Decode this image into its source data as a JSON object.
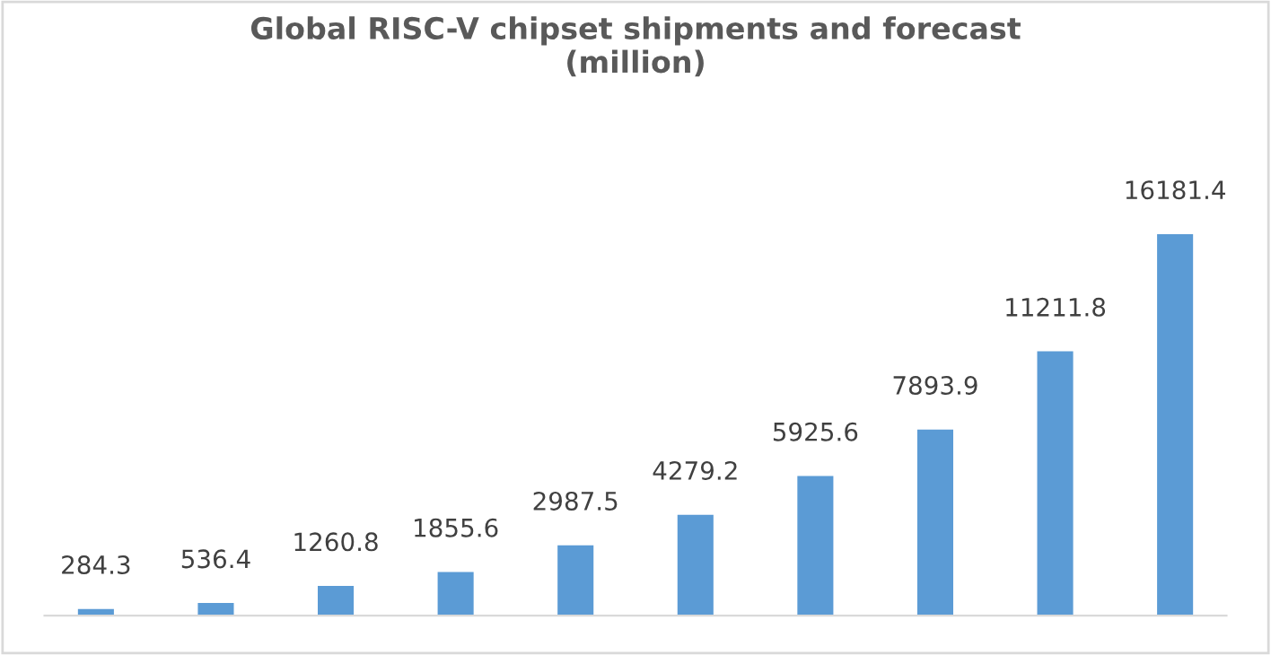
{
  "chart_data": {
    "type": "bar",
    "title": "Global RISC-V chipset shipments and forecast\n(million)",
    "categories": [
      null,
      null,
      null,
      null,
      null,
      null,
      null,
      null,
      null,
      null
    ],
    "values": [
      284.3,
      536.4,
      1260.8,
      1855.6,
      2987.5,
      4279.2,
      5925.6,
      7893.9,
      11211.8,
      16181.4
    ],
    "color": "#5b9bd5",
    "data_labels": true,
    "grid": false,
    "legend": false
  }
}
